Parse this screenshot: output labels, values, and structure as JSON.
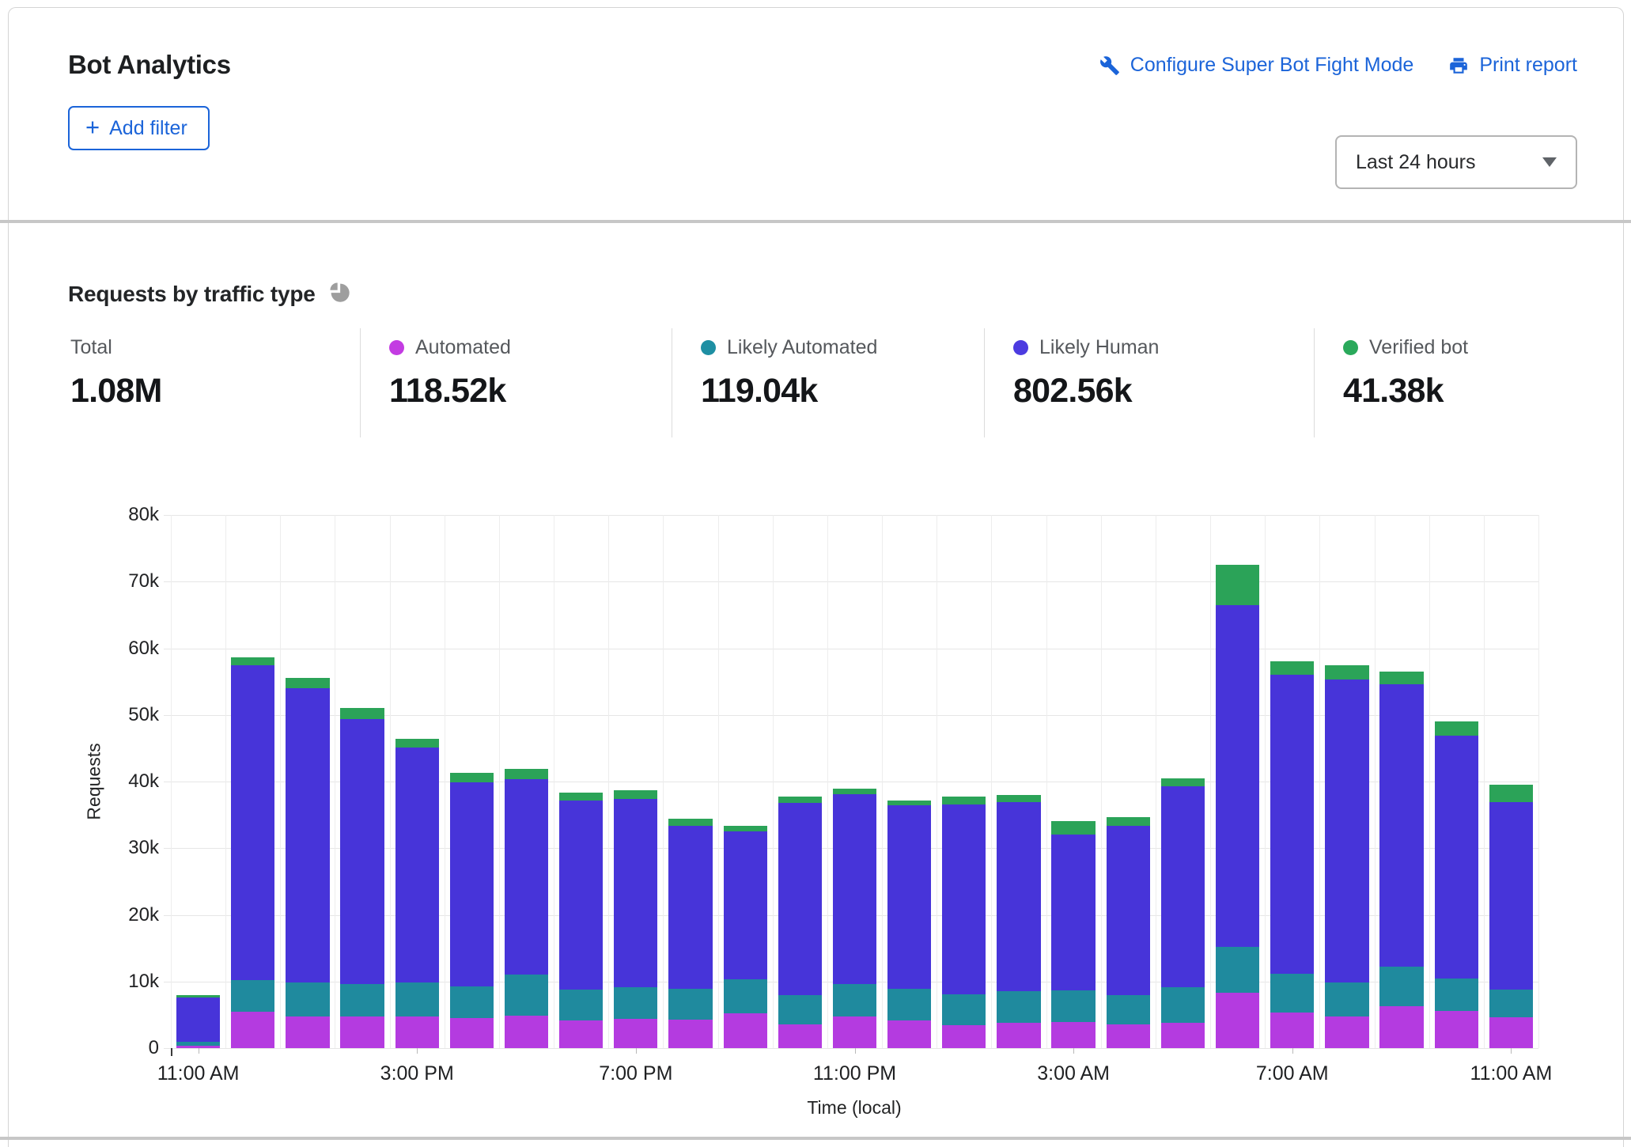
{
  "header": {
    "title": "Bot Analytics",
    "configure_link": "Configure Super Bot Fight Mode",
    "print_link": "Print report",
    "add_filter_label": "Add filter",
    "time_range": "Last 24 hours"
  },
  "section": {
    "title": "Requests by traffic type"
  },
  "colors": {
    "link_blue": "#1b64d9",
    "automated": "#b43be0",
    "likely_automated": "#1f8a9e",
    "likely_human": "#4734d9",
    "verified_bot": "#2ba358",
    "dot_automated": "#c33be2",
    "dot_likely_automated": "#1e8fa3",
    "dot_likely_human": "#4c3be0",
    "dot_verified_bot": "#2aa95b"
  },
  "stats": [
    {
      "label": "Total",
      "value": "1.08M",
      "dot": null
    },
    {
      "label": "Automated",
      "value": "118.52k",
      "dot": "#c33be2"
    },
    {
      "label": "Likely Automated",
      "value": "119.04k",
      "dot": "#1e8fa3"
    },
    {
      "label": "Likely Human",
      "value": "802.56k",
      "dot": "#4c3be0"
    },
    {
      "label": "Verified bot",
      "value": "41.38k",
      "dot": "#2aa95b"
    }
  ],
  "chart_data": {
    "type": "bar",
    "stacked": true,
    "title": "Requests by traffic type",
    "xlabel": "Time (local)",
    "ylabel": "Requests",
    "ylim": [
      0,
      80000
    ],
    "grid": true,
    "y_ticks": [
      "80k",
      "70k",
      "60k",
      "50k",
      "40k",
      "30k",
      "20k",
      "10k",
      "0"
    ],
    "x_ticks": [
      {
        "label": "11:00 AM",
        "slot": 0
      },
      {
        "label": "3:00 PM",
        "slot": 4
      },
      {
        "label": "7:00 PM",
        "slot": 8
      },
      {
        "label": "11:00 PM",
        "slot": 12
      },
      {
        "label": "3:00 AM",
        "slot": 16
      },
      {
        "label": "7:00 AM",
        "slot": 20
      },
      {
        "label": "11:00 AM",
        "slot": 24
      }
    ],
    "series": [
      {
        "name": "Automated",
        "color": "#b43be0",
        "values": [
          300,
          5500,
          4700,
          4700,
          4800,
          4500,
          4900,
          4200,
          4400,
          4300,
          5200,
          3600,
          4700,
          4200,
          3500,
          3800,
          3900,
          3600,
          3800,
          8300,
          5300,
          4800,
          6300,
          5600,
          4600
        ]
      },
      {
        "name": "Likely Automated",
        "color": "#1f8a9e",
        "values": [
          600,
          4700,
          5100,
          4900,
          5100,
          4800,
          6100,
          4600,
          4800,
          4600,
          5100,
          4400,
          4900,
          4700,
          4600,
          4700,
          4800,
          4300,
          5300,
          6900,
          5900,
          5100,
          5900,
          4800,
          4200
        ]
      },
      {
        "name": "Likely Human",
        "color": "#4734d9",
        "values": [
          6700,
          47200,
          44200,
          39800,
          35200,
          30600,
          29300,
          28300,
          28200,
          24400,
          22200,
          28800,
          28500,
          27500,
          28500,
          28400,
          23300,
          25500,
          30200,
          51300,
          44800,
          45400,
          42400,
          36500,
          28100
        ]
      },
      {
        "name": "Verified bot",
        "color": "#2ba358",
        "values": [
          400,
          1200,
          1600,
          1700,
          1300,
          1400,
          1600,
          1300,
          1300,
          1100,
          800,
          1000,
          800,
          800,
          1200,
          1100,
          2100,
          1300,
          1200,
          6000,
          2000,
          2200,
          1900,
          2100,
          2600
        ]
      }
    ]
  }
}
